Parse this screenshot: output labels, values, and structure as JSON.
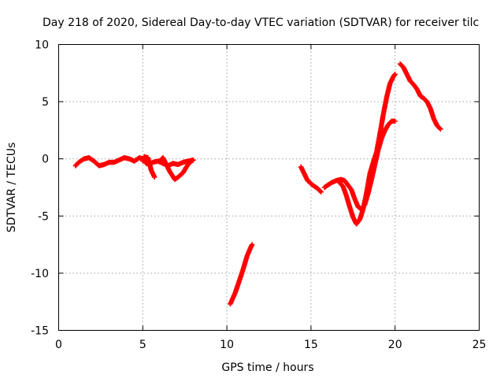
{
  "chart_data": {
    "type": "scatter",
    "title": "Day 218 of 2020, Sidereal Day-to-day VTEC variation (SDTVAR) for receiver tilc",
    "xlabel": "GPS time / hours",
    "ylabel": "SDTVAR / TECUs",
    "xlim": [
      0,
      25
    ],
    "ylim": [
      -15,
      10
    ],
    "xticks": [
      0,
      5,
      10,
      15,
      20,
      25
    ],
    "yticks": [
      -15,
      -10,
      -5,
      0,
      5,
      10
    ],
    "xtick_labels": [
      "0",
      "5",
      "10",
      "15",
      "20",
      "25"
    ],
    "ytick_labels": [
      "-15",
      "-10",
      "-5",
      "0",
      "5",
      "10"
    ],
    "grid": true,
    "marker": "+",
    "color": "#ff0000",
    "series": [
      {
        "segments": [
          [
            [
              1.0,
              -0.6
            ],
            [
              1.2,
              -0.3
            ],
            [
              1.5,
              0.0
            ],
            [
              1.8,
              0.1
            ],
            [
              2.1,
              -0.2
            ],
            [
              2.4,
              -0.6
            ],
            [
              2.7,
              -0.5
            ],
            [
              3.0,
              -0.3
            ],
            [
              3.3,
              -0.3
            ],
            [
              3.6,
              -0.1
            ],
            [
              3.9,
              0.1
            ],
            [
              4.2,
              0.0
            ],
            [
              4.5,
              -0.2
            ],
            [
              4.8,
              0.1
            ],
            [
              5.0,
              0.0
            ],
            [
              5.2,
              -0.4
            ],
            [
              5.4,
              -0.5
            ],
            [
              5.6,
              -0.3
            ],
            [
              5.9,
              -0.2
            ],
            [
              6.2,
              -0.4
            ],
            [
              6.5,
              -0.6
            ],
            [
              6.8,
              -0.4
            ],
            [
              7.1,
              -0.5
            ],
            [
              7.4,
              -0.3
            ],
            [
              7.7,
              -0.2
            ],
            [
              8.0,
              -0.1
            ]
          ],
          [
            [
              5.0,
              -0.2
            ],
            [
              5.1,
              0.2
            ],
            [
              5.3,
              0.1
            ],
            [
              5.4,
              -0.4
            ],
            [
              5.5,
              -1.0
            ],
            [
              5.7,
              -1.6
            ]
          ],
          [
            [
              6.0,
              -0.2
            ],
            [
              6.2,
              0.1
            ],
            [
              6.4,
              -0.5
            ],
            [
              6.6,
              -1.1
            ],
            [
              6.9,
              -1.8
            ],
            [
              7.1,
              -1.6
            ],
            [
              7.4,
              -1.2
            ],
            [
              7.6,
              -0.7
            ],
            [
              7.8,
              -0.3
            ],
            [
              8.0,
              -0.1
            ]
          ],
          [
            [
              10.2,
              -12.7
            ],
            [
              10.5,
              -11.7
            ],
            [
              10.8,
              -10.4
            ],
            [
              11.0,
              -9.5
            ],
            [
              11.2,
              -8.5
            ],
            [
              11.4,
              -7.8
            ],
            [
              11.5,
              -7.5
            ]
          ],
          [
            [
              14.4,
              -0.7
            ],
            [
              14.6,
              -1.3
            ],
            [
              14.8,
              -1.9
            ],
            [
              15.1,
              -2.3
            ],
            [
              15.4,
              -2.6
            ],
            [
              15.6,
              -2.9
            ]
          ],
          [
            [
              15.8,
              -2.5
            ],
            [
              16.0,
              -2.3
            ],
            [
              16.2,
              -2.1
            ],
            [
              16.5,
              -1.9
            ],
            [
              16.8,
              -1.8
            ],
            [
              17.0,
              -1.9
            ],
            [
              17.2,
              -2.3
            ],
            [
              17.4,
              -2.7
            ],
            [
              17.6,
              -3.5
            ],
            [
              17.8,
              -4.2
            ],
            [
              18.0,
              -4.4
            ],
            [
              18.2,
              -4.0
            ],
            [
              18.4,
              -3.0
            ],
            [
              18.6,
              -1.8
            ],
            [
              18.8,
              -0.5
            ],
            [
              19.0,
              0.8
            ],
            [
              19.2,
              1.8
            ],
            [
              19.4,
              2.5
            ],
            [
              19.6,
              3.0
            ],
            [
              19.8,
              3.3
            ],
            [
              20.0,
              3.3
            ]
          ],
          [
            [
              16.6,
              -1.9
            ],
            [
              16.9,
              -2.4
            ],
            [
              17.1,
              -3.2
            ],
            [
              17.3,
              -4.2
            ],
            [
              17.5,
              -5.1
            ],
            [
              17.7,
              -5.7
            ],
            [
              17.9,
              -5.3
            ],
            [
              18.1,
              -4.4
            ],
            [
              18.3,
              -3.0
            ],
            [
              18.5,
              -1.3
            ],
            [
              18.7,
              -0.3
            ],
            [
              18.9,
              0.6
            ],
            [
              19.1,
              2.2
            ],
            [
              19.3,
              3.9
            ],
            [
              19.5,
              5.4
            ],
            [
              19.7,
              6.6
            ],
            [
              19.9,
              7.2
            ],
            [
              20.0,
              7.4
            ]
          ],
          [
            [
              20.3,
              8.3
            ],
            [
              20.5,
              8.0
            ],
            [
              20.7,
              7.4
            ],
            [
              20.9,
              6.8
            ],
            [
              21.1,
              6.5
            ],
            [
              21.3,
              6.1
            ],
            [
              21.5,
              5.5
            ],
            [
              21.7,
              5.3
            ],
            [
              21.9,
              5.0
            ],
            [
              22.1,
              4.4
            ],
            [
              22.3,
              3.5
            ],
            [
              22.5,
              2.9
            ],
            [
              22.7,
              2.6
            ]
          ]
        ]
      }
    ]
  }
}
